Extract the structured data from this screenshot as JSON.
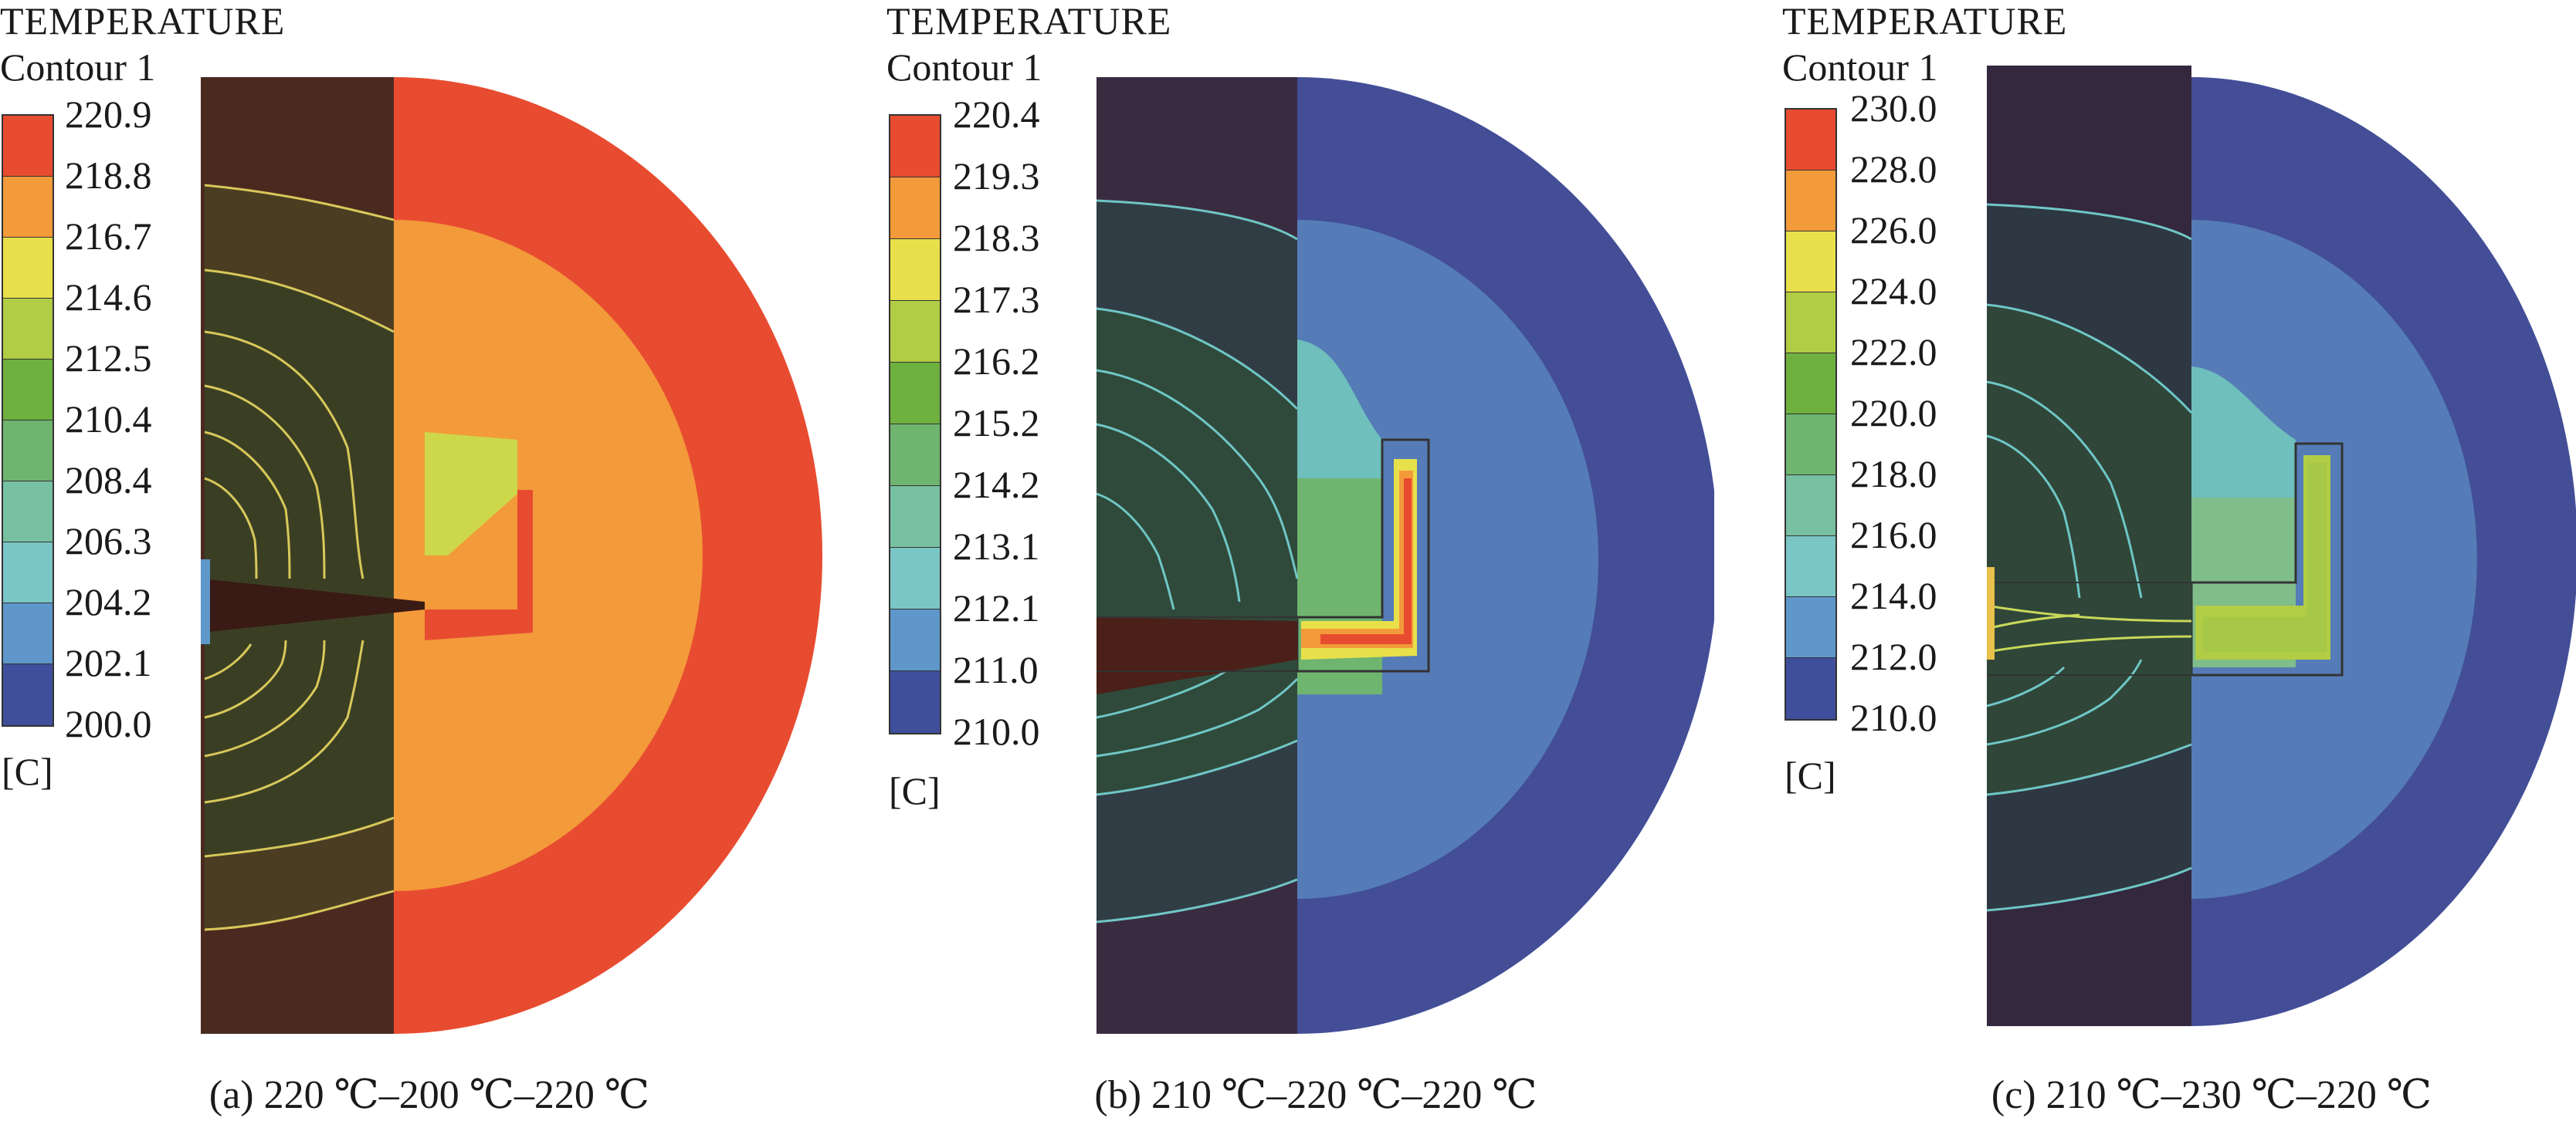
{
  "panels": [
    {
      "title": "TEMPERATURE",
      "subtitle": "Contour 1",
      "unit": "[C]",
      "caption": "(a) 220 ℃–200 ℃–220 ℃",
      "levels": [
        "220.9",
        "218.8",
        "216.7",
        "214.6",
        "212.5",
        "210.4",
        "208.4",
        "206.3",
        "204.2",
        "202.1",
        "200.0"
      ],
      "colors": [
        "#e84c30",
        "#f39a3a",
        "#e8e04a",
        "#b1cc45",
        "#6fb13f",
        "#6fb56f",
        "#78c0a2",
        "#7ac6c6",
        "#5f97ca",
        "#3f4f9c"
      ]
    },
    {
      "title": "TEMPERATURE",
      "subtitle": "Contour 1",
      "unit": "[C]",
      "caption": "(b) 210 ℃–220 ℃–220 ℃",
      "levels": [
        "220.4",
        "219.3",
        "218.3",
        "217.3",
        "216.2",
        "215.2",
        "214.2",
        "213.1",
        "212.1",
        "211.0",
        "210.0"
      ],
      "colors": [
        "#e84c30",
        "#f39a3a",
        "#e8e04a",
        "#b1cc45",
        "#6fb13f",
        "#6fb56f",
        "#78c0a2",
        "#7ac6c6",
        "#5f97ca",
        "#3f4f9c"
      ]
    },
    {
      "title": "TEMPERATURE",
      "subtitle": "Contour 1",
      "unit": "[C]",
      "caption": "(c) 210 ℃–230 ℃–220 ℃",
      "levels": [
        "230.0",
        "228.0",
        "226.0",
        "224.0",
        "222.0",
        "220.0",
        "218.0",
        "216.0",
        "214.0",
        "212.0",
        "210.0"
      ],
      "colors": [
        "#e84c30",
        "#f39a3a",
        "#e8e04a",
        "#b1cc45",
        "#6fb13f",
        "#6fb56f",
        "#78c0a2",
        "#7ac6c6",
        "#5f97ca",
        "#3f4f9c"
      ]
    }
  ]
}
